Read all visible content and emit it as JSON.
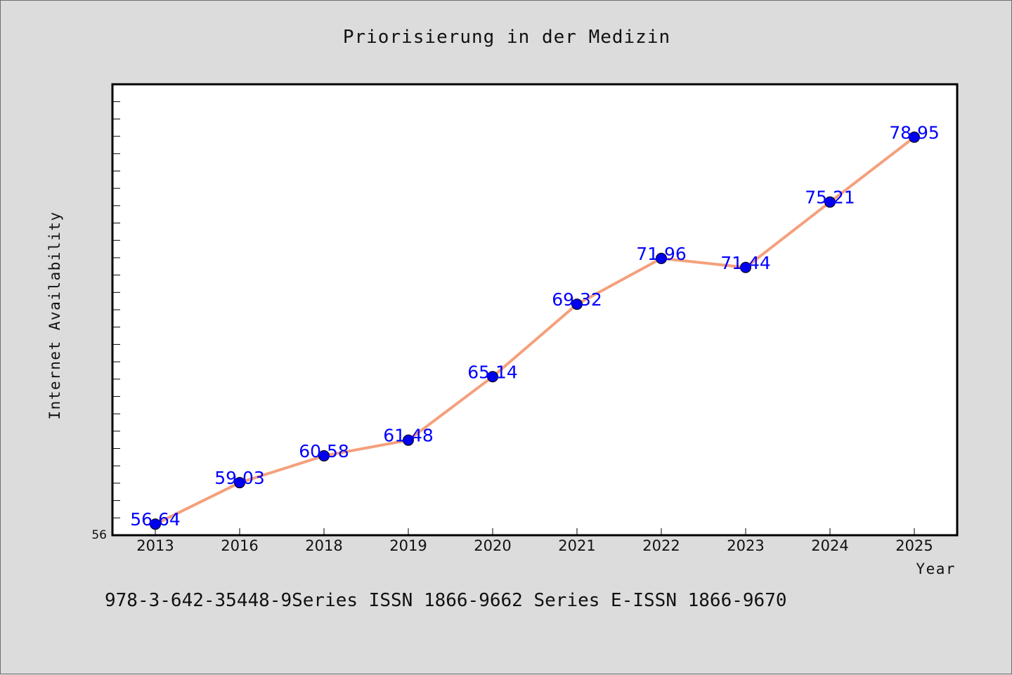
{
  "chart_data": {
    "type": "line",
    "title": "Priorisierung in der Medizin",
    "xlabel": "Year",
    "ylabel": "Internet Availability",
    "categories": [
      "2013",
      "2016",
      "2018",
      "2019",
      "2020",
      "2021",
      "2022",
      "2023",
      "2024",
      "2025"
    ],
    "series": [
      {
        "values": [
          56.64,
          59.03,
          60.58,
          61.48,
          65.14,
          69.32,
          71.96,
          71.44,
          75.21,
          78.95
        ]
      }
    ],
    "value_labels": [
      "56.64",
      "59.03",
      "60.58",
      "61.48",
      "65.14",
      "69.32",
      "71.96",
      "71.44",
      "75.21",
      "78.95"
    ],
    "ylim": [
      56,
      82
    ],
    "y_min_label": "56",
    "grid": false,
    "legend": "none",
    "colors": {
      "line": "#f4a07c",
      "marker": "#0000ee",
      "label": "#0000ff",
      "plot_bg": "#ffffff",
      "page_bg": "#dcdcdc"
    }
  },
  "footer": "978-3-642-35448-9Series ISSN 1866-9662 Series E-ISSN 1866-9670"
}
